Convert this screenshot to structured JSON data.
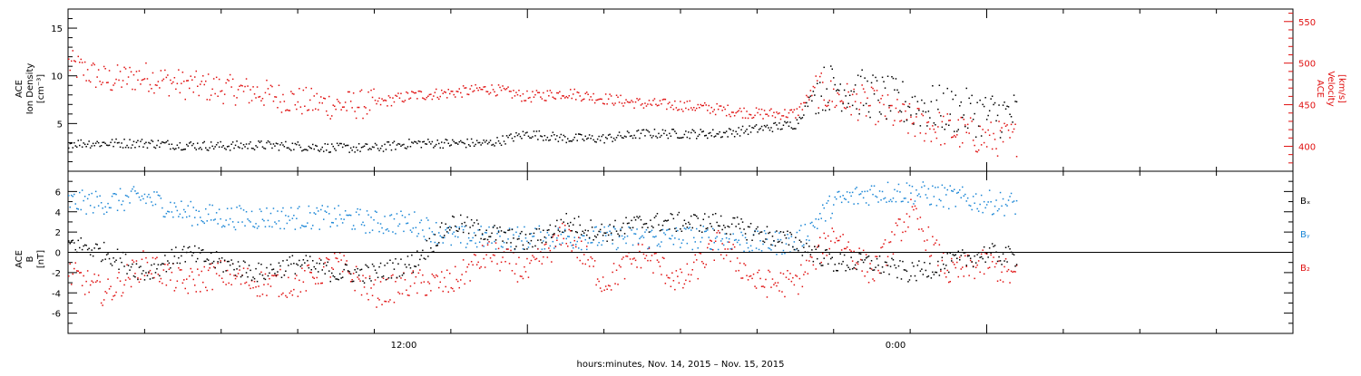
{
  "chart_data": [
    {
      "type": "scatter",
      "panel": "top",
      "ylabel_left": [
        "ACE",
        "Ion Density",
        "[cm⁻³]"
      ],
      "ylabel_right": [
        "ACE",
        "Velocity",
        "[km/s]"
      ],
      "yticks_left": [
        "15",
        "10",
        "5"
      ],
      "yticks_right": [
        "550",
        "500",
        "450",
        "400"
      ],
      "ylim_left": [
        0,
        17
      ],
      "ylim_right": [
        370,
        565
      ],
      "x_range_hours": [
        0,
        32
      ],
      "data_end_hour": 24.8,
      "colors": {
        "density": "#000000",
        "velocity": "#e01010"
      },
      "series": [
        {
          "key": "density",
          "x": [
            0,
            1,
            2,
            3,
            4,
            5,
            6,
            7,
            8,
            9,
            10,
            11,
            12,
            13,
            14,
            15,
            16,
            17,
            18,
            19,
            19.5,
            20,
            21,
            22,
            23,
            24,
            24.8
          ],
          "values": [
            3,
            3,
            3,
            2.8,
            2.7,
            2.8,
            2.7,
            2.5,
            2.5,
            3,
            3,
            3,
            4,
            3.5,
            3.5,
            4,
            4,
            4,
            4.5,
            5,
            8.5,
            9,
            8,
            7,
            6.5,
            6,
            6
          ]
        },
        {
          "key": "velocity",
          "x": [
            0,
            0.5,
            1,
            2,
            3,
            4,
            5,
            6,
            7,
            8,
            9,
            10,
            11,
            12,
            13,
            14,
            15,
            16,
            17,
            18,
            19,
            19.5,
            20,
            21,
            22,
            23,
            24,
            24.8
          ],
          "values": [
            500,
            490,
            480,
            485,
            475,
            470,
            465,
            455,
            450,
            452,
            462,
            465,
            470,
            460,
            465,
            458,
            452,
            450,
            445,
            440,
            440,
            470,
            460,
            450,
            430,
            420,
            410,
            410
          ]
        }
      ]
    },
    {
      "type": "scatter",
      "panel": "bottom",
      "ylabel_left": [
        "ACE",
        "B",
        "[nT]"
      ],
      "yticks_left": [
        "6",
        "4",
        "2",
        "0",
        "-2",
        "-4",
        "-6"
      ],
      "ylim_left": [
        -8,
        8
      ],
      "zero_line": true,
      "legend": [
        "Bₓ",
        "Bᵧ",
        "B₂"
      ],
      "colors": {
        "bx": "#000000",
        "by": "#1a86d6",
        "bz": "#e01010"
      },
      "series": [
        {
          "key": "bx",
          "x": [
            0,
            1,
            2,
            3,
            4,
            5,
            6,
            7,
            8,
            9,
            10,
            11,
            12,
            13,
            14,
            15,
            16,
            17,
            18,
            19,
            20,
            21,
            22,
            23,
            24,
            24.8
          ],
          "values": [
            1,
            0,
            -2,
            0,
            -1,
            -2,
            -1,
            -2,
            -2,
            -1,
            3,
            2,
            1,
            3,
            2,
            3,
            3,
            3,
            2,
            1,
            -1,
            -1,
            -2,
            -1,
            0,
            -0.5
          ]
        },
        {
          "key": "by",
          "x": [
            0,
            1,
            2,
            3,
            4,
            5,
            6,
            7,
            8,
            9,
            10,
            11,
            12,
            13,
            14,
            15,
            16,
            17,
            18,
            19,
            20,
            21,
            22,
            23,
            24,
            24.8
          ],
          "values": [
            5,
            5,
            5.5,
            4,
            3.5,
            3.5,
            3.5,
            3.5,
            3,
            3,
            1.5,
            1.5,
            1.5,
            1.5,
            1.5,
            1.5,
            1.5,
            1.5,
            1,
            1,
            5,
            6,
            6,
            5.5,
            5,
            4.8
          ]
        },
        {
          "key": "bz",
          "x": [
            0,
            1,
            2,
            3,
            4,
            5,
            6,
            7,
            8,
            9,
            10,
            11,
            12,
            13,
            14,
            15,
            16,
            17,
            18,
            19,
            20,
            21,
            22,
            23,
            24,
            24.8
          ],
          "values": [
            -2,
            -4,
            -1,
            -3,
            -2,
            -3,
            -3,
            -1,
            -4,
            -3,
            -3,
            0,
            -2,
            2,
            -3,
            0,
            -3,
            1,
            -3,
            -3,
            2,
            -2,
            4,
            -2,
            -1,
            -2.5
          ]
        }
      ]
    }
  ],
  "x_axis": {
    "tick_labels": [
      "12:00",
      "0:00"
    ],
    "tick_hours": [
      12,
      24
    ],
    "minor_every_hours": 2,
    "caption": "hours:minutes, Nov. 14, 2015 – Nov. 15, 2015"
  }
}
